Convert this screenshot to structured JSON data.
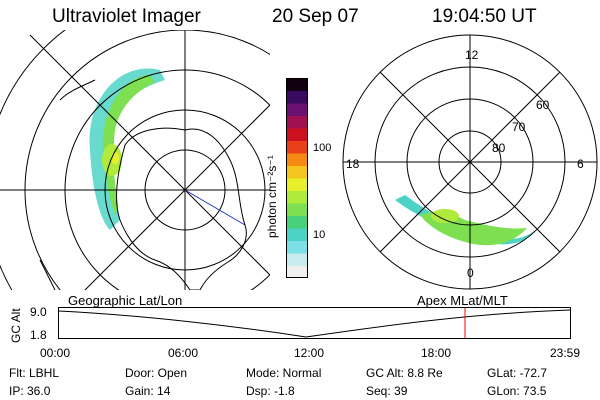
{
  "header": {
    "instrument": "Ultraviolet Imager",
    "date": "20 Sep 07",
    "time": "19:04:50 UT"
  },
  "left_map": {
    "caption": "Geographic Lat/Lon"
  },
  "right_map": {
    "caption": "Apex  MLat/MLT",
    "mlt_labels": [
      "12",
      "18",
      "6",
      "0"
    ],
    "mlat_labels": [
      "60",
      "70",
      "80"
    ]
  },
  "colorbar": {
    "unit": "photon cm⁻²s⁻¹",
    "ticks": [
      "100",
      "10"
    ],
    "colors": [
      "#f0f0f0",
      "#c8ecf0",
      "#7de0e6",
      "#4dd3c6",
      "#48d07a",
      "#7ee050",
      "#b0ea3a",
      "#e8f02c",
      "#f6c41e",
      "#f48a14",
      "#e8401a",
      "#cc1020",
      "#a01050",
      "#6a1070",
      "#3a0a60",
      "#100010"
    ]
  },
  "timeline": {
    "yaxis_label": "GC Alt",
    "y_ticks": [
      "9.0",
      "1.8"
    ],
    "x_ticks": [
      "00:00",
      "06:00",
      "12:00",
      "18:00",
      "23:59"
    ],
    "current_time_color": "#ff0000"
  },
  "footer": {
    "rows": [
      [
        "Flt:  LBHL",
        "Door:  Open",
        "Mode:  Normal",
        "GC Alt:  8.8 Re",
        "GLat:  -72.7"
      ],
      [
        "IP:  36.0",
        "Gain:  14",
        "Dsp:     -1.8",
        "Seq:  39",
        "GLon:   73.5"
      ]
    ]
  }
}
